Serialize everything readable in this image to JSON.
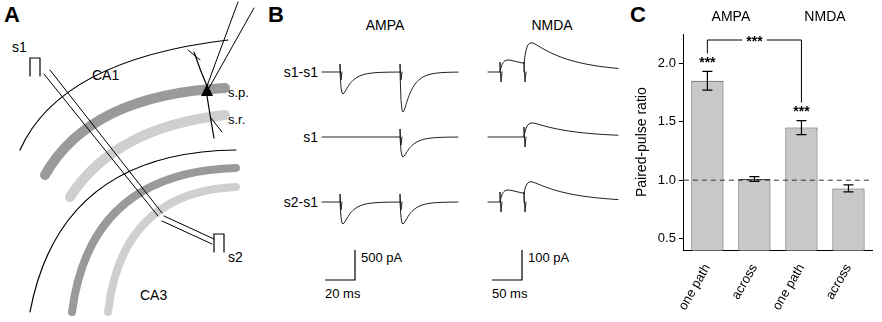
{
  "panel_a": {
    "letter": "A",
    "regions": [
      "CA1",
      "CA3"
    ],
    "layers": [
      "s.p.",
      "s.r."
    ],
    "electrodes": [
      "s1",
      "s2"
    ]
  },
  "panel_b": {
    "letter": "B",
    "columns": [
      "AMPA",
      "NMDA"
    ],
    "rows": [
      "s1-s1",
      "s1",
      "s2-s1"
    ],
    "scale_bars": [
      {
        "y": "500 pA",
        "x": "20 ms"
      },
      {
        "y": "100 pA",
        "x": "50 ms"
      }
    ]
  },
  "chart_data": {
    "type": "bar",
    "panel": "C",
    "y_label": "Paired-pulse ratio",
    "categories": [
      "one path",
      "across",
      "one path",
      "across"
    ],
    "groups": [
      {
        "label": "AMPA",
        "categories": [
          0,
          1
        ]
      },
      {
        "label": "NMDA",
        "categories": [
          2,
          3
        ]
      }
    ],
    "values": [
      1.85,
      1.01,
      1.45,
      0.93
    ],
    "errors": [
      0.08,
      0.02,
      0.06,
      0.03
    ],
    "color": "#c8c8c8",
    "ylim": [
      0.4,
      2.25
    ],
    "yticks": [
      0.5,
      {
        "value": 1,
        "label": "1.0"
      },
      1.5,
      {
        "value": 2,
        "label": "2.0"
      }
    ],
    "reference_line": 1,
    "annotations": [
      {
        "text": "***",
        "category": 0
      },
      {
        "text": "***",
        "category": 2
      },
      {
        "text": "***",
        "from": 0,
        "to": 2
      }
    ],
    "grid": false
  }
}
